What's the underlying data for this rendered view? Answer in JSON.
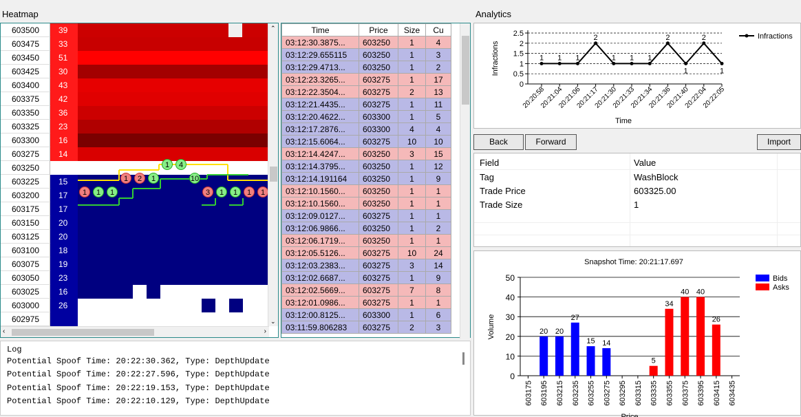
{
  "heatmap": {
    "title": "Heatmap",
    "rows": [
      {
        "price": "603500",
        "vol": "39",
        "side": "ask"
      },
      {
        "price": "603475",
        "vol": "33",
        "side": "ask"
      },
      {
        "price": "603450",
        "vol": "51",
        "side": "ask"
      },
      {
        "price": "603425",
        "vol": "30",
        "side": "ask"
      },
      {
        "price": "603400",
        "vol": "43",
        "side": "ask"
      },
      {
        "price": "603375",
        "vol": "42",
        "side": "ask"
      },
      {
        "price": "603350",
        "vol": "36",
        "side": "ask"
      },
      {
        "price": "603325",
        "vol": "23",
        "side": "ask"
      },
      {
        "price": "603300",
        "vol": "16",
        "side": "ask"
      },
      {
        "price": "603275",
        "vol": "14",
        "side": "ask"
      },
      {
        "price": "603250",
        "vol": "",
        "side": "none"
      },
      {
        "price": "603225",
        "vol": "15",
        "side": "bid"
      },
      {
        "price": "603200",
        "vol": "17",
        "side": "bid"
      },
      {
        "price": "603175",
        "vol": "17",
        "side": "bid"
      },
      {
        "price": "603150",
        "vol": "20",
        "side": "bid"
      },
      {
        "price": "603125",
        "vol": "20",
        "side": "bid"
      },
      {
        "price": "603100",
        "vol": "18",
        "side": "bid"
      },
      {
        "price": "603075",
        "vol": "19",
        "side": "bid"
      },
      {
        "price": "603050",
        "vol": "23",
        "side": "bid"
      },
      {
        "price": "603025",
        "vol": "16",
        "side": "bid"
      },
      {
        "price": "603000",
        "vol": "26",
        "side": "bid"
      },
      {
        "price": "602975",
        "vol": "",
        "side": "bid"
      }
    ],
    "markers": [
      {
        "label": "1",
        "color": "green"
      },
      {
        "label": "4",
        "color": "green"
      },
      {
        "label": "1",
        "color": "red"
      },
      {
        "label": "2",
        "color": "red"
      },
      {
        "label": "1",
        "color": "green"
      },
      {
        "label": "10",
        "color": "green"
      },
      {
        "label": "1",
        "color": "red"
      },
      {
        "label": "1",
        "color": "green"
      },
      {
        "label": "1",
        "color": "green"
      },
      {
        "label": "3",
        "color": "red"
      },
      {
        "label": "1",
        "color": "green"
      },
      {
        "label": "1",
        "color": "green"
      },
      {
        "label": "1",
        "color": "red"
      },
      {
        "label": "1",
        "color": "red"
      }
    ]
  },
  "trades": {
    "headers": [
      "Time",
      "Price",
      "Size",
      "Cu"
    ],
    "rows": [
      {
        "time": "03:12:30.3875...",
        "price": "603250",
        "size": "1",
        "cu": "4",
        "side": "sell"
      },
      {
        "time": "03:12:29.655115",
        "price": "603250",
        "size": "1",
        "cu": "3",
        "side": "buy"
      },
      {
        "time": "03:12:29.4713...",
        "price": "603250",
        "size": "1",
        "cu": "2",
        "side": "buy"
      },
      {
        "time": "03:12:23.3265...",
        "price": "603275",
        "size": "1",
        "cu": "17",
        "side": "sell"
      },
      {
        "time": "03:12:22.3504...",
        "price": "603275",
        "size": "2",
        "cu": "13",
        "side": "sell"
      },
      {
        "time": "03:12:21.4435...",
        "price": "603275",
        "size": "1",
        "cu": "11",
        "side": "buy"
      },
      {
        "time": "03:12:20.4622...",
        "price": "603300",
        "size": "1",
        "cu": "5",
        "side": "buy"
      },
      {
        "time": "03:12:17.2876...",
        "price": "603300",
        "size": "4",
        "cu": "4",
        "side": "buy"
      },
      {
        "time": "03:12:15.6064...",
        "price": "603275",
        "size": "10",
        "cu": "10",
        "side": "buy"
      },
      {
        "time": "03:12:14.4247...",
        "price": "603250",
        "size": "3",
        "cu": "15",
        "side": "sell"
      },
      {
        "time": "03:12:14.3795...",
        "price": "603250",
        "size": "1",
        "cu": "12",
        "side": "buy"
      },
      {
        "time": "03:12:14.191164",
        "price": "603250",
        "size": "1",
        "cu": "9",
        "side": "buy"
      },
      {
        "time": "03:12:10.1560...",
        "price": "603250",
        "size": "1",
        "cu": "1",
        "side": "sell"
      },
      {
        "time": "03:12:10.1560...",
        "price": "603250",
        "size": "1",
        "cu": "1",
        "side": "sell"
      },
      {
        "time": "03:12:09.0127...",
        "price": "603275",
        "size": "1",
        "cu": "1",
        "side": "buy"
      },
      {
        "time": "03:12:06.9866...",
        "price": "603250",
        "size": "1",
        "cu": "2",
        "side": "buy"
      },
      {
        "time": "03:12:06.1719...",
        "price": "603250",
        "size": "1",
        "cu": "1",
        "side": "sell"
      },
      {
        "time": "03:12:05.5126...",
        "price": "603275",
        "size": "10",
        "cu": "24",
        "side": "sell"
      },
      {
        "time": "03:12:03.2383...",
        "price": "603275",
        "size": "3",
        "cu": "14",
        "side": "buy"
      },
      {
        "time": "03:12:02.6687...",
        "price": "603275",
        "size": "1",
        "cu": "9",
        "side": "buy"
      },
      {
        "time": "03:12:02.5669...",
        "price": "603275",
        "size": "7",
        "cu": "8",
        "side": "sell"
      },
      {
        "time": "03:12:01.0986...",
        "price": "603275",
        "size": "1",
        "cu": "1",
        "side": "sell"
      },
      {
        "time": "03:12:00.8125...",
        "price": "603300",
        "size": "1",
        "cu": "6",
        "side": "buy"
      },
      {
        "time": "03:11:59.806283",
        "price": "603275",
        "size": "2",
        "cu": "3",
        "side": "buy"
      }
    ]
  },
  "log": {
    "title": "Log",
    "lines": [
      "Potential Spoof Time: 20:22:30.362, Type: DepthUpdate",
      "Potential Spoof Time: 20:22:27.596, Type: DepthUpdate",
      "Potential Spoof Time: 20:22:19.153, Type: DepthUpdate",
      "Potential Spoof Time: 20:22:10.129, Type: DepthUpdate"
    ]
  },
  "analytics": {
    "title": "Analytics",
    "back_label": "Back",
    "forward_label": "Forward",
    "import_label": "Import",
    "fields_header": {
      "field": "Field",
      "value": "Value"
    },
    "fields": [
      {
        "field": "Tag",
        "value": "WashBlock"
      },
      {
        "field": "Trade Price",
        "value": "603325.00"
      },
      {
        "field": "Trade Size",
        "value": "1"
      }
    ]
  },
  "chart_data": [
    {
      "type": "line",
      "title": "",
      "xlabel": "Time",
      "ylabel": "Infractions",
      "ylim": [
        0,
        2.5
      ],
      "yticks": [
        "0",
        "0.5",
        "1",
        "1.5",
        "2",
        "2.5"
      ],
      "categories": [
        "20:20:58",
        "20:21:04",
        "20:21:06",
        "20:21:17",
        "20:21:30",
        "20:21:33",
        "20:21:34",
        "20:21:36",
        "20:21:40",
        "20:22:04",
        "20:22:05"
      ],
      "series": [
        {
          "name": "Infractions",
          "values": [
            1,
            1,
            1,
            2,
            1,
            1,
            1,
            2,
            1,
            2,
            1
          ]
        }
      ],
      "grid": "horizontal dashed",
      "legend": "top-right",
      "color": "#000000"
    },
    {
      "type": "bar",
      "title": "Snapshot Time: 20:21:17.697",
      "xlabel": "Price",
      "ylabel": "Volume",
      "ylim": [
        0,
        50
      ],
      "yticks": [
        "0",
        "10",
        "20",
        "30",
        "40",
        "50"
      ],
      "categories": [
        "603175",
        "603195",
        "603215",
        "603235",
        "603255",
        "603275",
        "603295",
        "603315",
        "603335",
        "603355",
        "603375",
        "603395",
        "603415",
        "603435"
      ],
      "series": [
        {
          "name": "Bids",
          "color": "#0000ff",
          "values": [
            null,
            20,
            20,
            27,
            15,
            14,
            null,
            null,
            null,
            null,
            null,
            null,
            null,
            null
          ]
        },
        {
          "name": "Asks",
          "color": "#ff0000",
          "values": [
            null,
            null,
            null,
            null,
            null,
            null,
            null,
            null,
            5,
            34,
            40,
            40,
            26,
            null
          ]
        }
      ],
      "legend": "top-right"
    }
  ]
}
